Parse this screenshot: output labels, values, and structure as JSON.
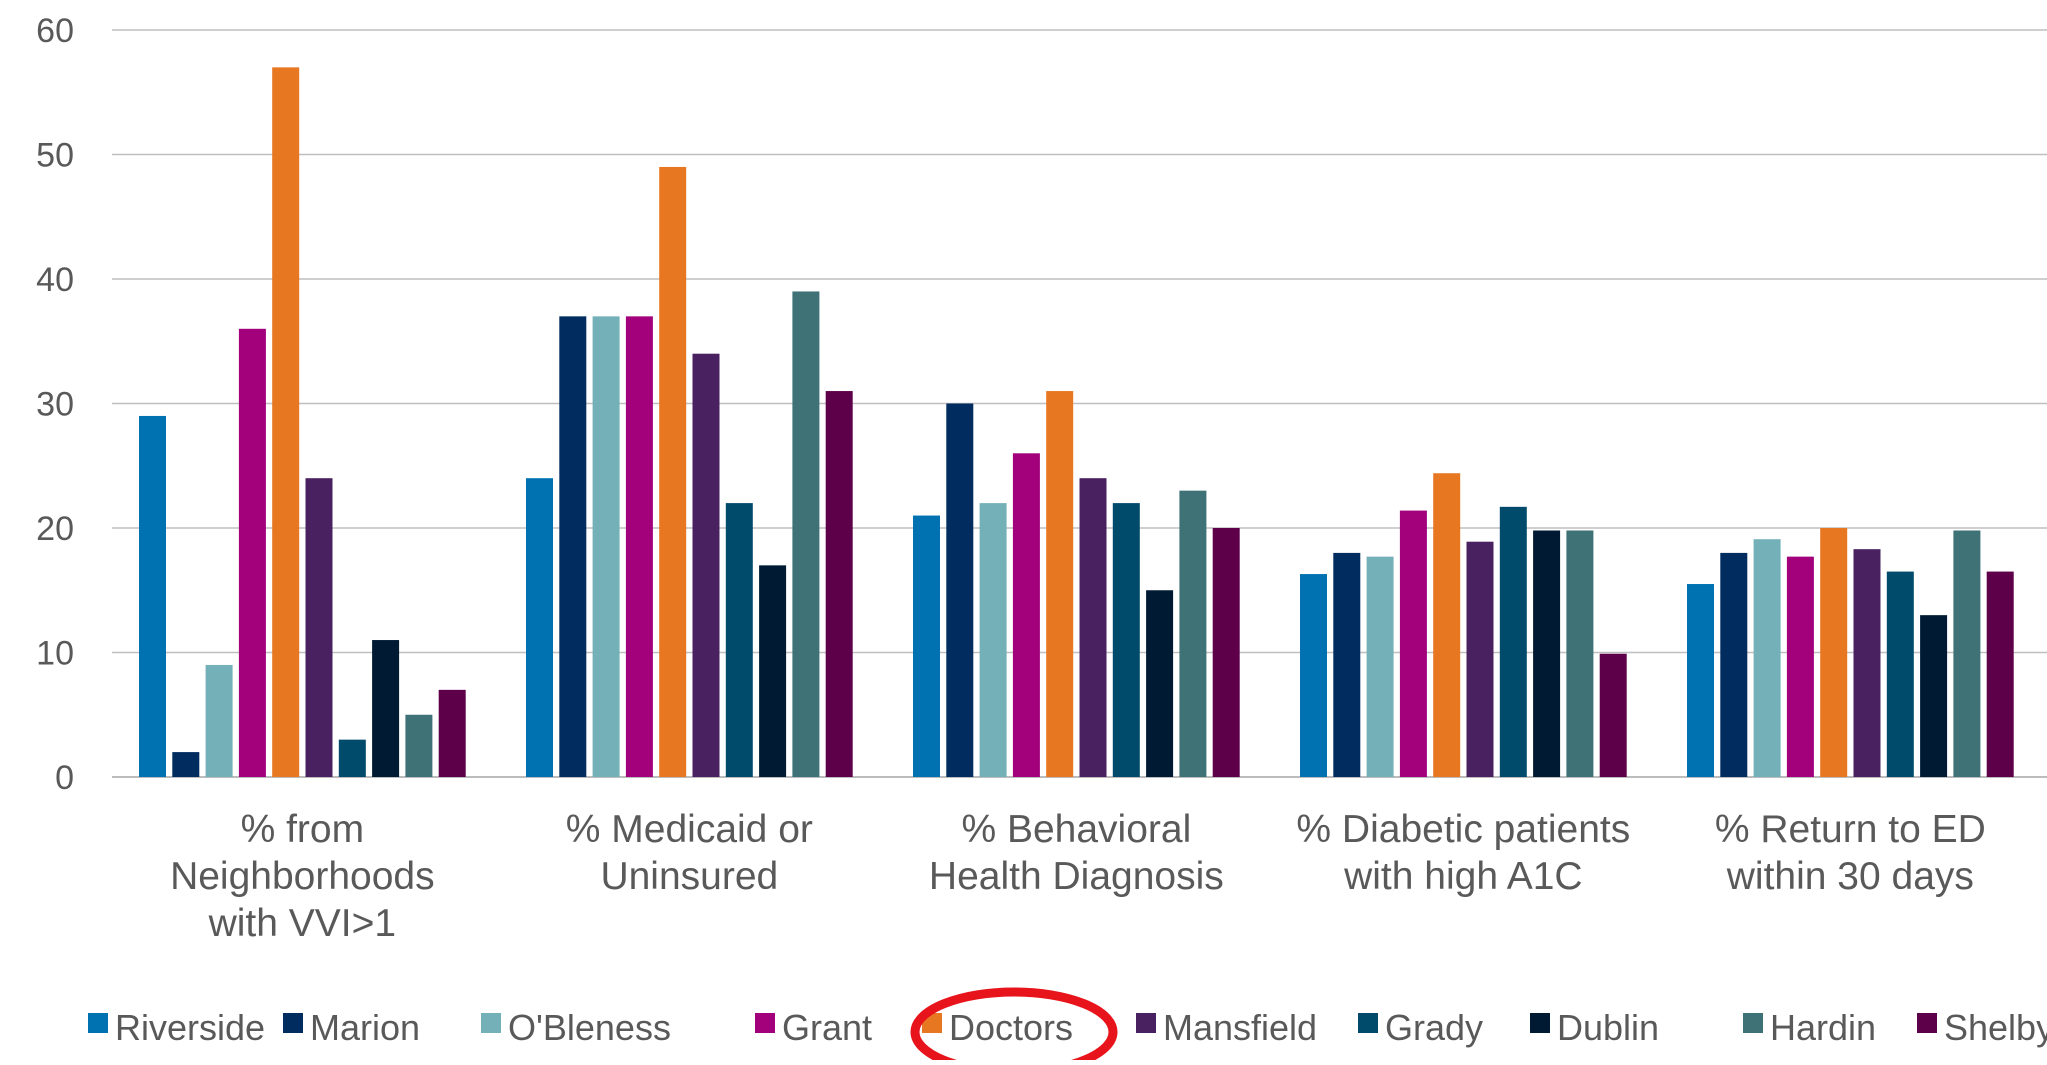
{
  "chart_data": {
    "type": "bar",
    "title": "",
    "xlabel": "",
    "ylabel": "",
    "ylim": [
      0,
      60
    ],
    "yticks": [
      0,
      10,
      20,
      30,
      40,
      50,
      60
    ],
    "grid": true,
    "legend_position": "bottom",
    "categories": [
      [
        "% from",
        "Neighborhoods",
        "with VVI>1"
      ],
      [
        "% Medicaid or",
        "Uninsured"
      ],
      [
        "% Behavioral",
        "Health Diagnosis"
      ],
      [
        "% Diabetic patients",
        "with high A1C"
      ],
      [
        "% Return to ED",
        "within 30 days"
      ]
    ],
    "series": [
      {
        "name": "Riverside",
        "color": "#0072B2",
        "values": [
          29,
          24,
          21,
          16.3,
          15.5
        ]
      },
      {
        "name": "Marion",
        "color": "#002C5F",
        "values": [
          2,
          37,
          30,
          18,
          18
        ]
      },
      {
        "name": "O'Bleness",
        "color": "#74B0B8",
        "values": [
          9,
          37,
          22,
          17.7,
          19.1
        ]
      },
      {
        "name": "Grant",
        "color": "#A3007B",
        "values": [
          36,
          37,
          26,
          21.4,
          17.7
        ]
      },
      {
        "name": "Doctors",
        "color": "#E87722",
        "values": [
          57,
          49,
          31,
          24.4,
          20
        ]
      },
      {
        "name": "Mansfield",
        "color": "#4A2160",
        "values": [
          24,
          34,
          24,
          18.9,
          18.3
        ]
      },
      {
        "name": "Grady",
        "color": "#004B6B",
        "values": [
          3,
          22,
          22,
          21.7,
          16.5
        ]
      },
      {
        "name": "Dublin",
        "color": "#001A33",
        "values": [
          11,
          17,
          15,
          19.8,
          13
        ]
      },
      {
        "name": "Hardin",
        "color": "#3E7276",
        "values": [
          5,
          39,
          23,
          19.8,
          19.8
        ]
      },
      {
        "name": "Shelby",
        "color": "#5E0049",
        "values": [
          7,
          31,
          20,
          9.9,
          16.5
        ]
      }
    ],
    "highlight": {
      "series": "Doctors",
      "shape": "ellipse",
      "color": "#E8141B"
    }
  }
}
